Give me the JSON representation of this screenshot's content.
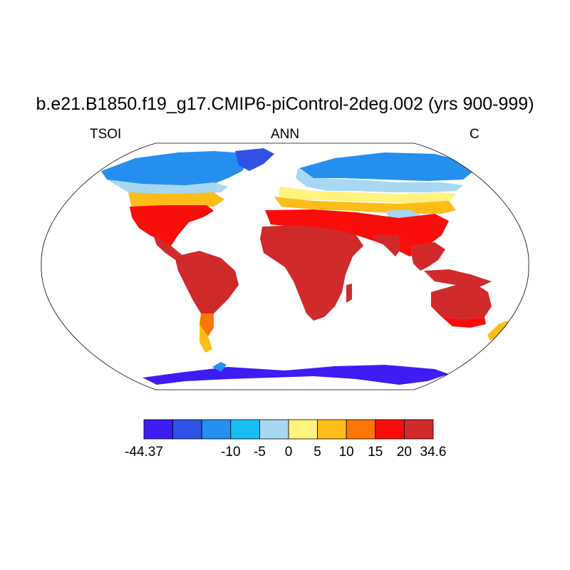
{
  "title": "b.e21.B1850.f19_g17.CMIP6-piControl-2deg.002 (yrs 900-999)",
  "left_label": "TSOI",
  "center_label": "ANN",
  "right_label": "C",
  "colorbar": {
    "colors": [
      "#3e1cf5",
      "#2f51e5",
      "#248fef",
      "#19bdf6",
      "#a6d8f3",
      "#fff27d",
      "#fdbc18",
      "#fb7607",
      "#f90d0b",
      "#d02a2b"
    ],
    "labels": [
      "-44.37",
      "-10",
      "-5",
      "0",
      "5",
      "10",
      "15",
      "20",
      "34.6"
    ]
  }
}
